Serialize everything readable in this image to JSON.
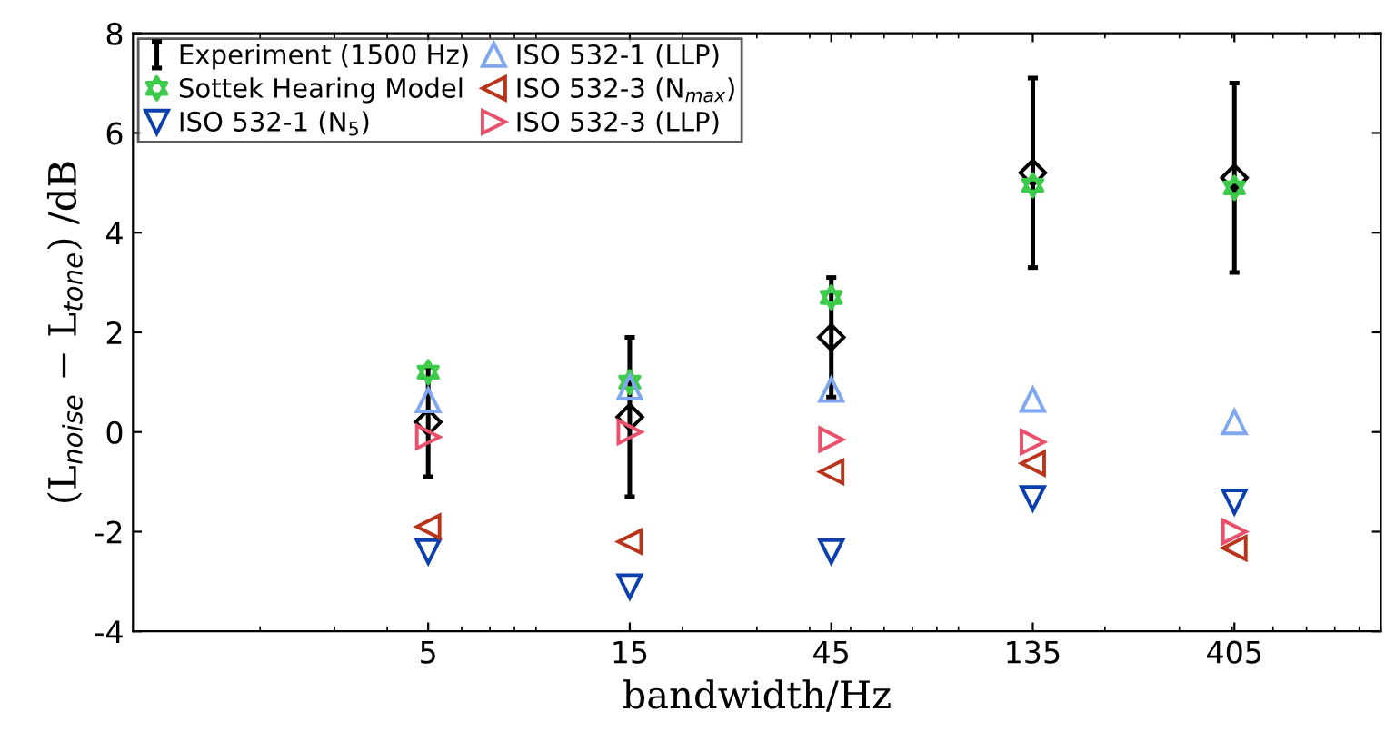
{
  "chart_data": {
    "type": "scatter",
    "xlabel": "bandwidth/Hz",
    "ylabel": "(L$_{noise}$ − L$_{tone}$) /dB",
    "x": [
      5,
      15,
      45,
      135,
      405
    ],
    "log": "x",
    "xlim": [
      1,
      900
    ],
    "xticks": [
      5,
      15,
      45,
      135,
      405
    ],
    "ylim": [
      -4,
      8
    ],
    "yticks": [
      -4,
      -2,
      0,
      2,
      4,
      6,
      8
    ],
    "grid": false,
    "legend": "top left",
    "series": [
      {
        "name": "Experiment (1500 Hz)",
        "color": "#000000",
        "marker": "diamond",
        "values": [
          0.2,
          0.3,
          1.9,
          5.2,
          5.1
        ],
        "errors": [
          1.1,
          1.6,
          1.2,
          1.9,
          1.9
        ]
      },
      {
        "name": "Sottek Hearing Model",
        "color": "#3ccc4a",
        "marker": "star",
        "values": [
          1.2,
          1.0,
          2.7,
          4.95,
          4.9
        ]
      },
      {
        "name": "ISO 532-1 (N$_{5}$)",
        "color": "#0b3fae",
        "marker": "triangle-down",
        "values": [
          -2.4,
          -3.1,
          -2.4,
          -1.33,
          -1.4
        ]
      },
      {
        "name": "ISO 532-1 (LLP)",
        "color": "#7fa8f0",
        "marker": "triangle-up",
        "values": [
          0.64,
          0.9,
          0.85,
          0.65,
          0.2
        ]
      },
      {
        "name": "ISO 532-3 (N$_{max}$)",
        "color": "#b8341b",
        "marker": "triangle-left",
        "values": [
          -1.9,
          -2.2,
          -0.8,
          -0.63,
          -2.33
        ]
      },
      {
        "name": "ISO 532-3 (LLP)",
        "color": "#e8506c",
        "marker": "triangle-right",
        "values": [
          -0.1,
          0.0,
          -0.15,
          -0.2,
          -2.0
        ]
      }
    ]
  }
}
